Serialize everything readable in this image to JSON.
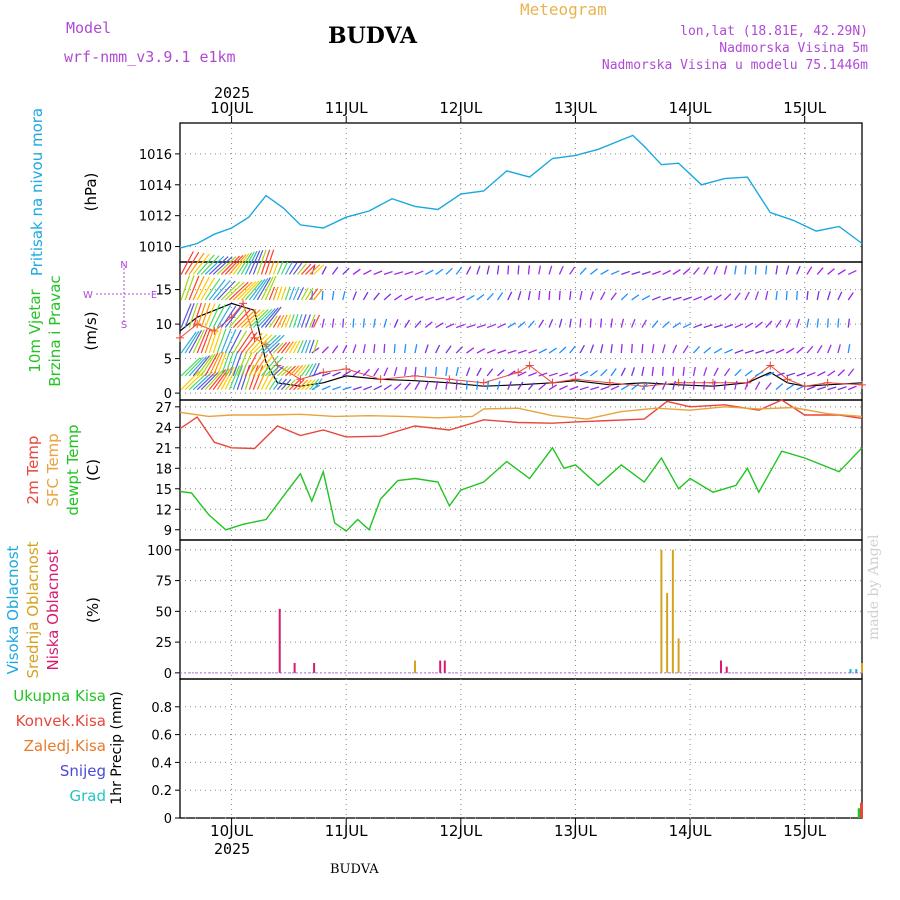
{
  "header": {
    "model_label": "Model",
    "model_name": "wrf-nmm_v3.9.1 e1km",
    "place_title": "BUDVA",
    "product_title": "Meteogram",
    "coords": "lon,lat (18.81E, 42.29N)",
    "elevation": "Nadmorska Visina 5m",
    "model_elevation": "Nadmorska Visina u modelu 75.1446m",
    "year_top": "2025",
    "year_bottom": "2025",
    "footer_place": "BUDVA",
    "watermark": "made by Angel"
  },
  "colors": {
    "pressure": "#1ca8e0",
    "temp2m": "#e8463c",
    "sfc": "#e8a33a",
    "dewpt": "#22c422",
    "cloud_high": "#1ca8e0",
    "cloud_mid": "#d4a21e",
    "cloud_low": "#d81a72",
    "wind_arrow": "#8a2be2",
    "gust": "#e8463c",
    "grid": "#888888"
  },
  "chart_data": [
    {
      "panel": "pressure",
      "type": "line",
      "ylabel_title": "Pritisak na nivou mora",
      "unit": "(hPa)",
      "ylim": [
        1009,
        1018
      ],
      "yticks": [
        1010,
        1012,
        1014,
        1016
      ],
      "x_days": [
        "10JUL",
        "11JUL",
        "12JUL",
        "13JUL",
        "14JUL",
        "15JUL"
      ],
      "series": [
        {
          "x": [
            9.55,
            9.7,
            9.85,
            10.0,
            10.15,
            10.3,
            10.45,
            10.6,
            10.8,
            11.0,
            11.2,
            11.4,
            11.6,
            11.8,
            12.0,
            12.2,
            12.4,
            12.6,
            12.8,
            13.0,
            13.2,
            13.4,
            13.5,
            13.6,
            13.75,
            13.9,
            14.1,
            14.3,
            14.5,
            14.7,
            14.9,
            15.1,
            15.3,
            15.5
          ],
          "y": [
            1009.9,
            1010.2,
            1010.8,
            1011.2,
            1011.9,
            1013.3,
            1012.5,
            1011.4,
            1011.2,
            1011.9,
            1012.3,
            1013.1,
            1012.6,
            1012.4,
            1013.4,
            1013.6,
            1014.9,
            1014.5,
            1015.7,
            1015.9,
            1016.3,
            1016.9,
            1017.2,
            1016.5,
            1015.3,
            1015.4,
            1014.0,
            1014.4,
            1014.5,
            1012.2,
            1011.7,
            1011.0,
            1011.3,
            1010.2
          ]
        }
      ]
    },
    {
      "panel": "wind",
      "type": "line",
      "ylabel_title_1": "10m Vjetar",
      "ylabel_title_2": "Brzina i Pravac",
      "unit": "(m/s)",
      "compass": {
        "n": "N",
        "s": "S",
        "w": "W",
        "e": "E"
      },
      "ylim": [
        -1,
        19
      ],
      "yticks": [
        0,
        5,
        10,
        15
      ],
      "series": [
        {
          "name": "wind speed",
          "x": [
            9.55,
            9.7,
            9.85,
            10.0,
            10.2,
            10.3,
            10.4,
            10.6,
            10.8,
            11.0,
            11.3,
            11.6,
            11.9,
            12.2,
            12.5,
            12.8,
            13.0,
            13.3,
            13.6,
            13.9,
            14.2,
            14.5,
            14.7,
            14.85,
            15.0,
            15.2,
            15.5
          ],
          "y": [
            9,
            11,
            12,
            13,
            12,
            4.5,
            1.5,
            1,
            1.5,
            2.5,
            2,
            1.8,
            1.5,
            1,
            1.2,
            1.5,
            1.8,
            1.2,
            1.5,
            1.2,
            1,
            1.5,
            3,
            1.5,
            1,
            1.2,
            1.5
          ]
        },
        {
          "name": "gusts",
          "x": [
            9.55,
            9.7,
            9.85,
            10.0,
            10.1,
            10.2,
            10.3,
            10.4,
            10.6,
            10.8,
            11.0,
            11.3,
            11.6,
            11.9,
            12.2,
            12.5,
            12.6,
            12.8,
            13.0,
            13.3,
            13.6,
            13.9,
            14.2,
            14.5,
            14.7,
            14.85,
            15.0,
            15.2,
            15.5
          ],
          "y": [
            8,
            10,
            9,
            11,
            13,
            8,
            7,
            4,
            2,
            3,
            3.5,
            2,
            2.5,
            2,
            1.5,
            3,
            4,
            1.5,
            2,
            1.5,
            1,
            1.5,
            1.5,
            1.5,
            4,
            2,
            1,
            1.5,
            1.2
          ]
        }
      ]
    },
    {
      "panel": "temperature",
      "type": "line",
      "ylabel_title_1": "2m Temp",
      "ylabel_title_2": "SFC Temp",
      "ylabel_title_3": "dewpt Temp",
      "unit": "(C)",
      "ylim": [
        7.5,
        28
      ],
      "yticks": [
        9,
        12,
        15,
        18,
        21,
        24,
        27
      ],
      "series": [
        {
          "name": "2m Temp",
          "x": [
            9.55,
            9.7,
            9.85,
            10.0,
            10.2,
            10.4,
            10.6,
            10.8,
            11.0,
            11.3,
            11.6,
            11.9,
            12.2,
            12.5,
            12.8,
            13.0,
            13.3,
            13.6,
            13.8,
            14.0,
            14.3,
            14.6,
            14.8,
            15.0,
            15.3,
            15.5
          ],
          "y": [
            23.8,
            25.5,
            21.8,
            21.0,
            20.9,
            24.2,
            22.8,
            23.6,
            22.6,
            22.7,
            24.2,
            23.6,
            25.1,
            24.7,
            24.6,
            24.8,
            25.0,
            25.2,
            27.8,
            27.0,
            27.3,
            26.5,
            28.0,
            25.8,
            25.8,
            25.3
          ]
        },
        {
          "name": "SFC Temp",
          "x": [
            9.55,
            9.8,
            10.0,
            10.3,
            10.6,
            10.9,
            11.2,
            11.5,
            11.8,
            12.1,
            12.2,
            12.5,
            12.8,
            13.1,
            13.4,
            13.7,
            14.0,
            14.3,
            14.6,
            14.9,
            15.2,
            15.5
          ],
          "y": [
            26.2,
            25.6,
            25.8,
            25.8,
            25.9,
            25.6,
            25.7,
            25.6,
            25.4,
            25.6,
            26.7,
            26.8,
            25.7,
            25.2,
            26.3,
            26.8,
            26.5,
            27.0,
            26.7,
            26.9,
            26.0,
            25.6
          ]
        },
        {
          "name": "dewpt Temp",
          "x": [
            9.55,
            9.65,
            9.8,
            9.95,
            10.1,
            10.3,
            10.5,
            10.6,
            10.7,
            10.8,
            10.9,
            11.0,
            11.1,
            11.2,
            11.3,
            11.45,
            11.6,
            11.8,
            11.9,
            12.0,
            12.2,
            12.4,
            12.6,
            12.8,
            12.9,
            13.0,
            13.2,
            13.4,
            13.6,
            13.75,
            13.9,
            14.0,
            14.2,
            14.4,
            14.5,
            14.6,
            14.8,
            15.0,
            15.3,
            15.5
          ],
          "y": [
            14.6,
            14.4,
            11.2,
            9.0,
            9.8,
            10.5,
            15.0,
            17.2,
            13.2,
            17.5,
            10.0,
            8.8,
            10.5,
            9.0,
            13.5,
            16.2,
            16.5,
            16.0,
            12.5,
            14.8,
            16.0,
            19.0,
            16.5,
            21.0,
            18.0,
            18.5,
            15.5,
            18.5,
            16.0,
            19.5,
            15.0,
            16.5,
            14.5,
            15.5,
            18.0,
            14.5,
            20.5,
            19.5,
            17.5,
            21.0
          ]
        }
      ]
    },
    {
      "panel": "clouds",
      "type": "bar",
      "ylabel_title_1": "Visoka Oblacnost",
      "ylabel_title_2": "Srednja Oblacnost",
      "ylabel_title_3": "Niska Oblacnost",
      "unit": "(%)",
      "ylim": [
        -5,
        108
      ],
      "yticks": [
        0,
        25,
        50,
        75,
        100
      ],
      "series": [
        {
          "name": "Visoka Oblacnost",
          "x": [
            15.4,
            15.45
          ],
          "values": [
            3,
            3
          ]
        },
        {
          "name": "Srednja Oblacnost",
          "x": [
            11.6,
            13.75,
            13.8,
            13.85,
            13.9,
            15.5
          ],
          "values": [
            10,
            100,
            65,
            100,
            28,
            8
          ]
        },
        {
          "name": "Niska Oblacnost",
          "x": [
            10.42,
            10.55,
            10.72,
            11.82,
            11.86,
            14.27,
            14.32
          ],
          "values": [
            52,
            8,
            8,
            10,
            10,
            10,
            5
          ]
        }
      ]
    },
    {
      "panel": "precipitation",
      "type": "bar",
      "legend": [
        "Ukupna Kisa",
        "Konvek.Kisa",
        "Zaledj.Kisa",
        "Snijeg",
        "Grad"
      ],
      "legend_colors": [
        "#22c422",
        "#e8463c",
        "#e87a2a",
        "#4a4ad8",
        "#22c4c4"
      ],
      "ylabel": "1hr Precip (mm)",
      "ylim": [
        0,
        1.0
      ],
      "yticks": [
        0,
        0.2,
        0.4,
        0.6,
        0.8
      ],
      "series": [
        {
          "name": "Ukupna Kisa",
          "x": [
            15.48
          ],
          "values": [
            0.07
          ]
        },
        {
          "name": "Konvek.Kisa",
          "x": [
            15.5
          ],
          "values": [
            0.11
          ]
        }
      ]
    }
  ]
}
